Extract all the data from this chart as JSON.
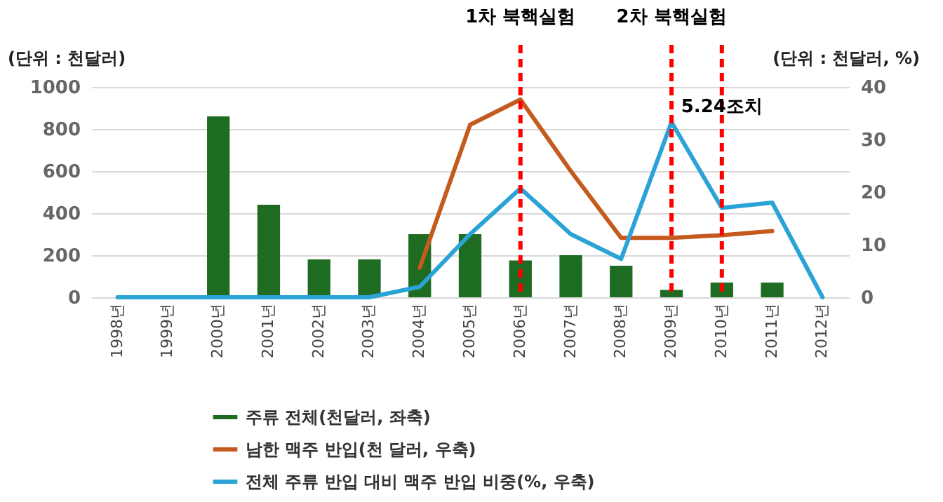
{
  "chart_data": {
    "type": "bar",
    "categories": [
      "1998년",
      "1999년",
      "2000년",
      "2001년",
      "2002년",
      "2003년",
      "2004년",
      "2005년",
      "2006년",
      "2007년",
      "2008년",
      "2009년",
      "2010년",
      "2011년",
      "2012년"
    ],
    "ylabel": "(단위 : 천달러)",
    "y2label": "(단위 : 천달러, %)",
    "series": [
      {
        "name": "주류 전체(천달러, 좌축)",
        "color": "#1e6b22",
        "values": [
          null,
          null,
          860,
          440,
          180,
          180,
          300,
          300,
          175,
          200,
          150,
          35,
          70,
          70,
          null
        ]
      },
      {
        "name": "남한 맥주 반입(천 달러, 우축)",
        "type": "line",
        "axis": "y2",
        "color": "#c55a1f",
        "values": [
          null,
          null,
          null,
          null,
          null,
          null,
          5.6,
          32.8,
          37.6,
          24,
          11.3,
          11.3,
          11.8,
          12.6,
          null
        ]
      },
      {
        "name": "전체 주류 반입 대비 맥주 반입 비중(%, 우축)",
        "type": "line",
        "axis": "y2",
        "color": "#2aa3d6",
        "values": [
          0,
          0,
          0,
          0,
          0,
          0,
          2,
          12,
          20.7,
          12,
          7.3,
          33.3,
          17,
          18,
          0
        ]
      }
    ],
    "ylim": [
      0,
      1000
    ],
    "yticks": [
      0,
      200,
      400,
      600,
      800,
      1000
    ],
    "y2lim": [
      0,
      40
    ],
    "y2ticks": [
      0,
      10,
      20,
      30,
      40
    ],
    "ref_lines": [
      {
        "axis": "x",
        "value": "2006년",
        "label": "1차 북핵실험",
        "color": "#ff0000",
        "line_style": "dashed"
      },
      {
        "axis": "x",
        "value": "2009년",
        "label": "2차 북핵실험",
        "color": "#ff0000",
        "line_style": "dashed"
      },
      {
        "axis": "x",
        "value": "2010년",
        "label": "5.24조치",
        "color": "#ff0000",
        "line_style": "dashed"
      }
    ],
    "grid": "y",
    "legend": "bottom"
  }
}
